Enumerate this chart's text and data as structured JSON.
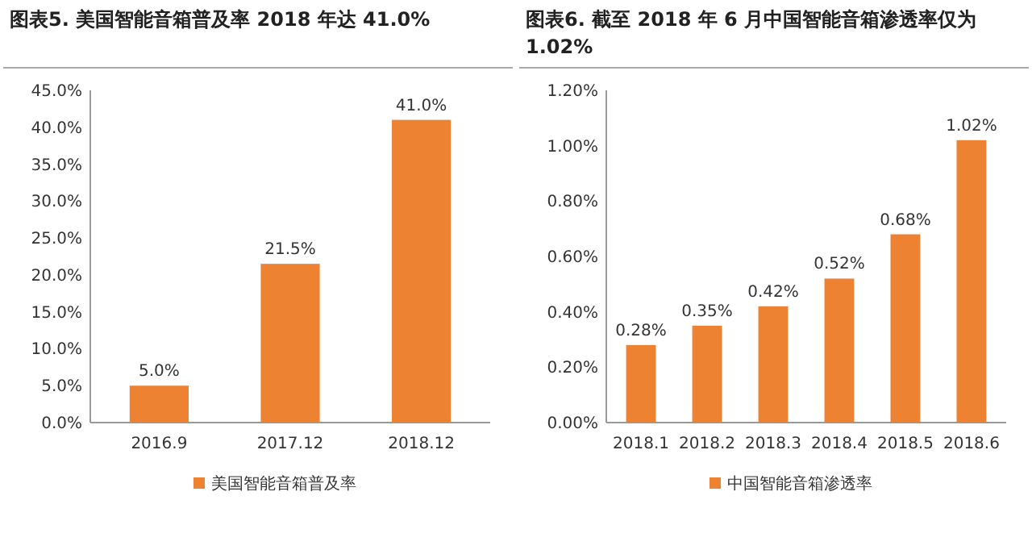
{
  "chart_data": [
    {
      "type": "bar",
      "title": "图表5.  美国智能音箱普及率 2018 年达 41.0%",
      "categories": [
        "2016.9",
        "2017.12",
        "2018.12"
      ],
      "series": [
        {
          "name": "美国智能音箱普及率",
          "color": "#ee8233",
          "values": [
            5.0,
            21.5,
            41.0
          ],
          "value_labels": [
            "5.0%",
            "21.5%",
            "41.0%"
          ]
        }
      ],
      "ylim": [
        0,
        45
      ],
      "yticks": [
        {
          "value": 0,
          "label": "0.0%"
        },
        {
          "value": 5,
          "label": "5.0%"
        },
        {
          "value": 10,
          "label": "10.0%"
        },
        {
          "value": 15,
          "label": "15.0%"
        },
        {
          "value": 20,
          "label": "20.0%"
        },
        {
          "value": 25,
          "label": "25.0%"
        },
        {
          "value": 30,
          "label": "30.0%"
        },
        {
          "value": 35,
          "label": "35.0%"
        },
        {
          "value": 40,
          "label": "40.0%"
        },
        {
          "value": 45,
          "label": "45.0%"
        }
      ],
      "grid": false,
      "legend": "bottom"
    },
    {
      "type": "bar",
      "title": "图表6.  截至 2018 年 6 月中国智能音箱渗透率仅为 1.02%",
      "categories": [
        "2018.1",
        "2018.2",
        "2018.3",
        "2018.4",
        "2018.5",
        "2018.6"
      ],
      "series": [
        {
          "name": "中国智能音箱渗透率",
          "color": "#ee8233",
          "values": [
            0.28,
            0.35,
            0.42,
            0.52,
            0.68,
            1.02
          ],
          "value_labels": [
            "0.28%",
            "0.35%",
            "0.42%",
            "0.52%",
            "0.68%",
            "1.02%"
          ]
        }
      ],
      "ylim": [
        0,
        1.2
      ],
      "yticks": [
        {
          "value": 0,
          "label": "0.00%"
        },
        {
          "value": 0.2,
          "label": "0.20%"
        },
        {
          "value": 0.4,
          "label": "0.40%"
        },
        {
          "value": 0.6,
          "label": "0.60%"
        },
        {
          "value": 0.8,
          "label": "0.80%"
        },
        {
          "value": 1.0,
          "label": "1.00%"
        },
        {
          "value": 1.2,
          "label": "1.20%"
        }
      ],
      "grid": false,
      "legend": "bottom"
    }
  ]
}
